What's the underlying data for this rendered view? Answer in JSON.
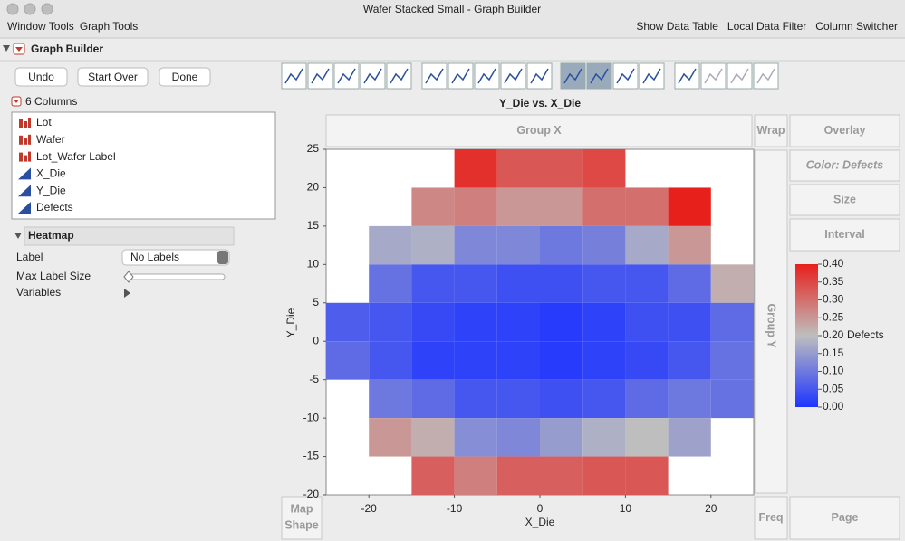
{
  "window": {
    "title": "Wafer Stacked Small - Graph Builder",
    "menu_left": [
      "Window Tools",
      "Graph Tools"
    ],
    "menu_right": [
      "Show Data Table",
      "Local Data Filter",
      "Column Switcher"
    ]
  },
  "panel": {
    "title": "Graph Builder",
    "buttons": [
      "Undo",
      "Start Over",
      "Done"
    ],
    "columns_header": "6 Columns",
    "columns": [
      "Lot",
      "Wafer",
      "Lot_Wafer Label",
      "X_Die",
      "Y_Die",
      "Defects"
    ],
    "section": "Heatmap",
    "label_row": "Label",
    "label_value": "No Labels",
    "max_label_size": "Max Label Size",
    "variables": "Variables"
  },
  "zones": {
    "group_x": "Group X",
    "wrap": "Wrap",
    "overlay": "Overlay",
    "color": "Color: Defects",
    "size": "Size",
    "interval": "Interval",
    "group_y": "Group Y",
    "map_shape": [
      "Map",
      "Shape"
    ],
    "freq": "Freq",
    "page": "Page"
  },
  "chart_data": {
    "type": "heatmap",
    "title": "Y_Die vs. X_Die",
    "x_label": "X_Die",
    "y_label": "Y_Die",
    "x": [
      -22.5,
      -17.5,
      -12.5,
      -7.5,
      -2.5,
      2.5,
      7.5,
      12.5,
      17.5,
      22.5
    ],
    "y": [
      22.5,
      17.5,
      12.5,
      7.5,
      2.5,
      -2.5,
      -7.5,
      -12.5,
      -17.5
    ],
    "values": [
      [
        null,
        null,
        null,
        0.38,
        0.33,
        0.33,
        0.35,
        null,
        null,
        null
      ],
      [
        null,
        null,
        0.27,
        0.28,
        0.25,
        0.25,
        0.3,
        0.3,
        0.4,
        null
      ],
      [
        null,
        0.17,
        0.18,
        0.12,
        0.12,
        0.1,
        0.11,
        0.17,
        0.25,
        null
      ],
      [
        null,
        0.09,
        0.05,
        0.05,
        0.04,
        0.04,
        0.05,
        0.05,
        0.08,
        0.22
      ],
      [
        0.06,
        0.05,
        0.03,
        0.02,
        0.02,
        0.01,
        0.02,
        0.04,
        0.04,
        0.08
      ],
      [
        0.08,
        0.05,
        0.02,
        0.02,
        0.02,
        0.01,
        0.02,
        0.03,
        0.05,
        0.09
      ],
      [
        null,
        0.1,
        0.08,
        0.05,
        0.05,
        0.04,
        0.05,
        0.08,
        0.1,
        0.09
      ],
      [
        null,
        0.25,
        0.22,
        0.13,
        0.12,
        0.15,
        0.18,
        0.2,
        0.16,
        null
      ],
      [
        null,
        null,
        0.32,
        0.28,
        0.32,
        0.32,
        0.33,
        0.33,
        null,
        null
      ]
    ],
    "xlim": [
      -25,
      25
    ],
    "ylim": [
      -20,
      25
    ],
    "xticks": [
      -20,
      -10,
      0,
      10,
      20
    ],
    "yticks": [
      25,
      20,
      15,
      10,
      5,
      0,
      -5,
      -10,
      -15,
      -20
    ],
    "clim": [
      0,
      0.4
    ],
    "colors": [
      "#1e34ff",
      "#bebebe",
      "#e8201c"
    ],
    "legend_title": "Defects",
    "legend_ticks": [
      {
        "value": 0.4,
        "label": "0.40"
      },
      {
        "value": 0.35,
        "label": "0.35"
      },
      {
        "value": 0.3,
        "label": "0.30"
      },
      {
        "value": 0.25,
        "label": "0.25"
      },
      {
        "value": 0.2,
        "label": "0.20"
      },
      {
        "value": 0.15,
        "label": "0.15"
      },
      {
        "value": 0.1,
        "label": "0.10"
      },
      {
        "value": 0.05,
        "label": "0.05"
      },
      {
        "value": 0,
        "label": "0.00"
      }
    ]
  }
}
